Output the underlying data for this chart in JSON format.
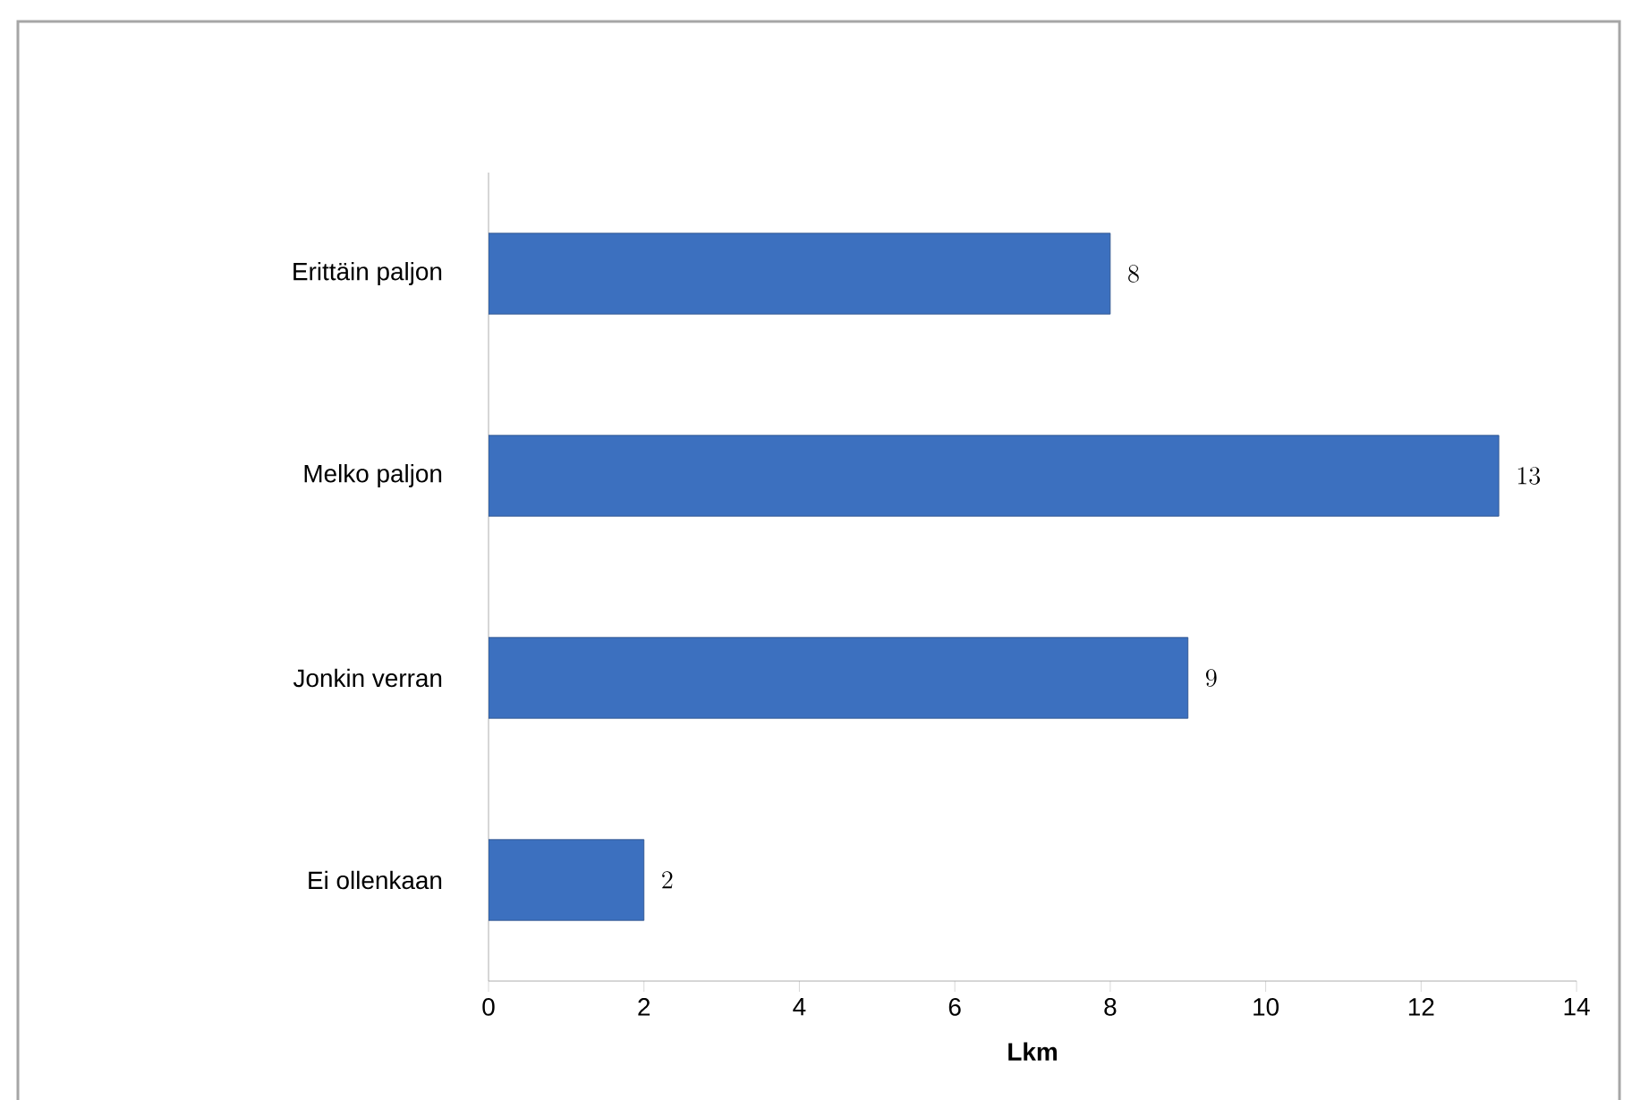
{
  "chart_data": {
    "type": "bar",
    "orientation": "horizontal",
    "categories": [
      "Erittäin paljon",
      "Melko paljon",
      "Jonkin verran",
      "Ei ollenkaan"
    ],
    "values": [
      8,
      13,
      9,
      2
    ],
    "color": "#3c70bf",
    "xlabel": "Lkm",
    "xlim": [
      0,
      14
    ],
    "xticks": [
      0,
      2,
      4,
      6,
      8,
      10,
      12,
      14
    ],
    "data_labels": true,
    "grid": false
  }
}
